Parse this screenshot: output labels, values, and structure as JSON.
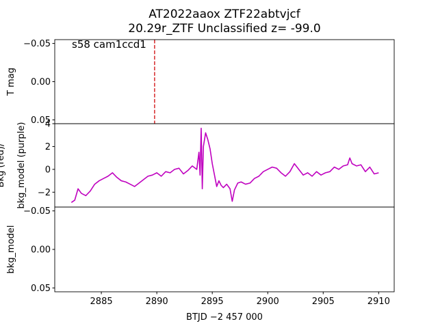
{
  "chart_data": [
    {
      "type": "line",
      "title": [
        "AT2022aaox  ZTF22abtvjcf",
        "20.29r_ZTF Unclassified z= -99.0"
      ],
      "ylabel": [
        "T mag"
      ],
      "annotation": "s58 cam1ccd1",
      "xlim": [
        2880.8,
        2911.4
      ],
      "ylim": [
        0.055,
        -0.055
      ],
      "yticks": [
        {
          "value": -0.05,
          "label": "−0.05"
        },
        {
          "value": 0,
          "label": "0.00"
        },
        0.05
      ],
      "vlines": [
        {
          "x": 2889.8,
          "color": "#d62728"
        }
      ],
      "series": []
    },
    {
      "type": "line",
      "ylabel": [
        "Bkg (red)/",
        "bkg_model (purple)"
      ],
      "xlim": [
        2880.8,
        2911.4
      ],
      "ylim": [
        -3.3,
        4
      ],
      "yticks": [
        {
          "value": -2,
          "label": "−2"
        },
        0,
        2,
        4
      ],
      "series": [
        {
          "color": "#bf00bf",
          "x": [
            2882.3,
            2882.6,
            2882.9,
            2883.2,
            2883.6,
            2884.0,
            2884.4,
            2884.8,
            2885.2,
            2885.6,
            2886.0,
            2886.4,
            2886.8,
            2887.2,
            2887.6,
            2888.0,
            2888.4,
            2888.8,
            2889.2,
            2889.6,
            2890.0,
            2890.4,
            2890.8,
            2891.2,
            2891.6,
            2892.0,
            2892.4,
            2892.8,
            2893.2,
            2893.6,
            2893.8,
            2893.9,
            2894.0,
            2894.1,
            2894.2,
            2894.4,
            2894.6,
            2894.8,
            2895.0,
            2895.2,
            2895.4,
            2895.6,
            2895.8,
            2896.0,
            2896.3,
            2896.6,
            2896.8,
            2897.0,
            2897.3,
            2897.6,
            2898.0,
            2898.4,
            2898.8,
            2899.2,
            2899.6,
            2900.0,
            2900.4,
            2900.8,
            2901.2,
            2901.6,
            2902.0,
            2902.4,
            2902.8,
            2903.2,
            2903.6,
            2904.0,
            2904.4,
            2904.8,
            2905.2,
            2905.6,
            2906.0,
            2906.4,
            2906.8,
            2907.2,
            2907.4,
            2907.6,
            2908.0,
            2908.4,
            2908.8,
            2909.2,
            2909.6,
            2910.0
          ],
          "values": [
            -2.9,
            -2.7,
            -1.7,
            -2.1,
            -2.3,
            -1.9,
            -1.3,
            -1.0,
            -0.8,
            -0.6,
            -0.3,
            -0.7,
            -1.0,
            -1.1,
            -1.3,
            -1.5,
            -1.2,
            -0.9,
            -0.6,
            -0.5,
            -0.3,
            -0.6,
            -0.2,
            -0.3,
            0.0,
            0.1,
            -0.4,
            -0.1,
            0.3,
            0.0,
            1.5,
            -0.5,
            3.6,
            -1.7,
            2.0,
            3.2,
            2.6,
            1.8,
            0.5,
            -0.5,
            -1.5,
            -1.0,
            -1.4,
            -1.6,
            -1.3,
            -1.7,
            -2.8,
            -1.8,
            -1.2,
            -1.1,
            -1.3,
            -1.2,
            -0.8,
            -0.6,
            -0.2,
            0.0,
            0.2,
            0.1,
            -0.3,
            -0.6,
            -0.2,
            0.5,
            0.0,
            -0.5,
            -0.3,
            -0.6,
            -0.2,
            -0.5,
            -0.3,
            -0.2,
            0.2,
            0.0,
            0.3,
            0.4,
            1.0,
            0.5,
            0.3,
            0.4,
            -0.2,
            0.2,
            -0.4,
            -0.3
          ]
        }
      ]
    },
    {
      "type": "line",
      "ylabel": [
        "bkg_model"
      ],
      "xlabel": "BTJD −2 457 000",
      "xlim": [
        2880.8,
        2911.4
      ],
      "ylim": [
        0.055,
        -0.055
      ],
      "yticks": [
        {
          "value": -0.05,
          "label": "−0.05"
        },
        {
          "value": 0,
          "label": "0.00"
        },
        0.05
      ],
      "xticks": [
        2885,
        2890,
        2895,
        2900,
        2905,
        2910
      ],
      "series": []
    }
  ]
}
